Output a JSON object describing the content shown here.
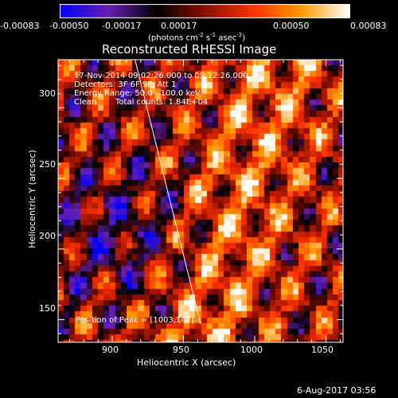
{
  "window": {
    "title": "Reconstructed RHESSI Image",
    "timestamp": "6-Aug-2017 03:56"
  },
  "colorbar": {
    "tick_labels": [
      "-0.00083",
      "-0.00050",
      "-0.00017",
      "0.00017",
      "0.00050",
      "0.00083"
    ],
    "unit_parts": [
      "(photons cm",
      "-2",
      " s",
      "-1",
      " asec",
      "-2",
      ")"
    ],
    "range": [
      -0.00083,
      0.00083
    ],
    "colors": [
      "#0000ff",
      "#6a1fb0",
      "#000000",
      "#8a1000",
      "#ff3000",
      "#ff9a00",
      "#ffffff"
    ]
  },
  "annotations": {
    "time_range": "17-Nov-2014 09:02:26.000 to 09:12:26.000",
    "detectors": "Detectors: 3F 6F 9F, Att 1",
    "energy": "Energy Range: 50.0 - 100.0 keV",
    "clean_label": "Clean",
    "total_counts": "Total counts: 1.84E+04",
    "peak_label": "Position of Peak = [",
    "peak_value": "1003,147]"
  },
  "chart_data": {
    "type": "heatmap",
    "title": "Reconstructed RHESSI Image",
    "xlabel": "Heliocentric X (arcsec)",
    "ylabel": "Heliocentric Y (arcsec)",
    "xlim": [
      862,
      1062
    ],
    "ylim": [
      134,
      334
    ],
    "x_ticks": [
      900,
      950,
      1000,
      1050
    ],
    "y_ticks": [
      150,
      200,
      250,
      300
    ],
    "x_tick_labels": [
      "900",
      "950",
      "1000",
      "1050"
    ],
    "y_tick_labels": [
      "150",
      "200",
      "250",
      "300"
    ],
    "limb_line": {
      "x": [
        916,
        962
      ],
      "y": [
        334,
        147
      ]
    },
    "peak": {
      "x": 1003,
      "y": 147
    },
    "grid": false
  }
}
